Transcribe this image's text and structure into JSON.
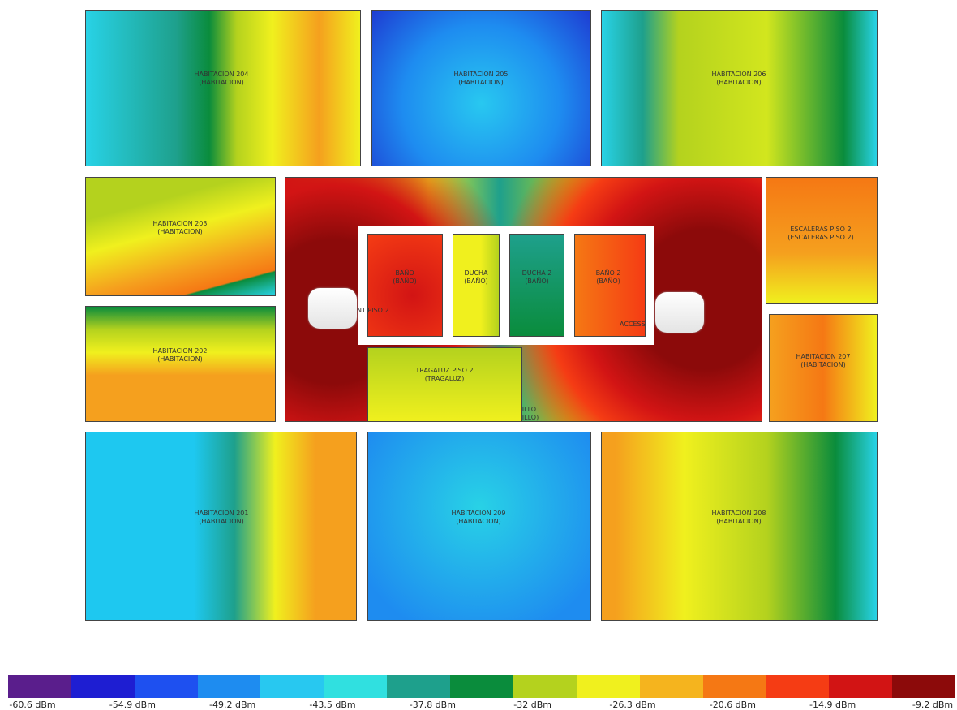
{
  "rooms": [
    {
      "name": "HABITACION 204",
      "type": "(HABITACION)"
    },
    {
      "name": "HABITACION 205",
      "type": "(HABITACION)"
    },
    {
      "name": "HABITACION 206",
      "type": "(HABITACION)"
    },
    {
      "name": "HABITACION 203",
      "type": "(HABITACION)"
    },
    {
      "name": "HABITACION 202",
      "type": "(HABITACION)"
    },
    {
      "name": "PASILLO",
      "type": "(PASILLO)"
    },
    {
      "name": "BAÑO",
      "type": "(BAÑO)"
    },
    {
      "name": "DUCHA",
      "type": "(BAÑO)"
    },
    {
      "name": "DUCHA 2",
      "type": "(BAÑO)"
    },
    {
      "name": "BAÑO 2",
      "type": "(BAÑO)"
    },
    {
      "name": "TRAGALUZ PISO 2",
      "type": "(TRAGALUZ)"
    },
    {
      "name": "ESCALERAS PISO 2",
      "type": "(ESCALERAS PISO 2)"
    },
    {
      "name": "HABITACION 207",
      "type": "(HABITACION)"
    },
    {
      "name": "HABITACION 201",
      "type": "(HABITACION)"
    },
    {
      "name": "HABITACION 209",
      "type": "(HABITACION)"
    },
    {
      "name": "HABITACION 208",
      "type": "(HABITACION)"
    }
  ],
  "access_points": [
    "NT PISO 2",
    "ACCESS"
  ],
  "legend": {
    "colors": [
      "#5a1e8c",
      "#1e1ed2",
      "#1e50f0",
      "#1e8cf0",
      "#28c8f0",
      "#30e0e0",
      "#1ea08c",
      "#0a8c3c",
      "#b4d21e",
      "#f0f01e",
      "#f5b41e",
      "#f57814",
      "#f53c14",
      "#d21414",
      "#8c0a0a"
    ],
    "labels": [
      "-60.6 dBm",
      "-54.9 dBm",
      "-49.2 dBm",
      "-43.5 dBm",
      "-37.8 dBm",
      "-32 dBm",
      "-26.3 dBm",
      "-20.6 dBm",
      "-14.9 dBm",
      "-9.2 dBm"
    ]
  }
}
